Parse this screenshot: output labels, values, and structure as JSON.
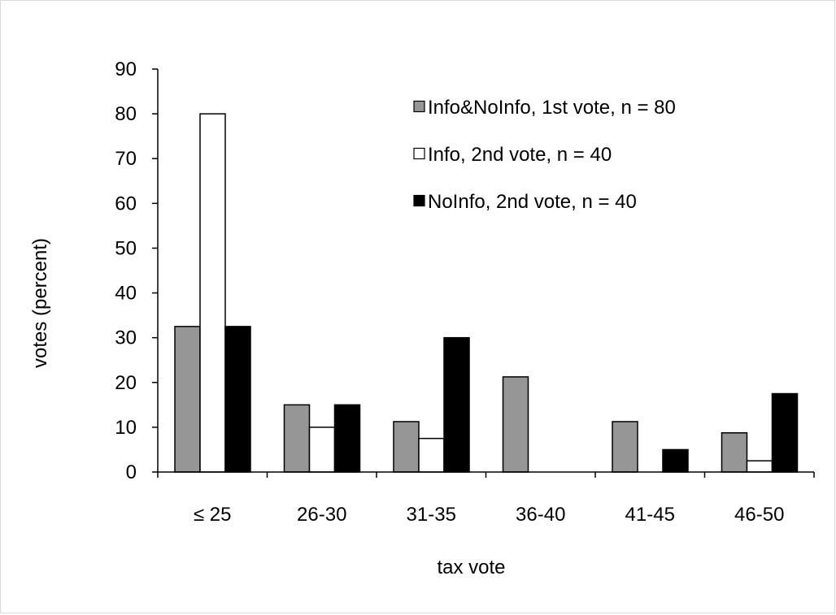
{
  "chart_data": {
    "type": "bar",
    "title": "",
    "xlabel": "tax vote",
    "ylabel": "votes (percent)",
    "ylim": [
      0,
      90
    ],
    "yticks": [
      0,
      10,
      20,
      30,
      40,
      50,
      60,
      70,
      80,
      90
    ],
    "categories": [
      "≤ 25",
      "26-30",
      "31-35",
      "36-40",
      "41-45",
      "46-50"
    ],
    "grid": false,
    "legend_position": "top-right",
    "series": [
      {
        "name": "Info&NoInfo, 1st vote, n = 80",
        "color": "#969696",
        "values": [
          32.5,
          15,
          11.25,
          21.25,
          11.25,
          8.75
        ]
      },
      {
        "name": "Info, 2nd vote, n = 40",
        "color": "#ffffff",
        "values": [
          80,
          10,
          7.5,
          0,
          0,
          2.5
        ]
      },
      {
        "name": "NoInfo, 2nd vote, n = 40",
        "color": "#000000",
        "values": [
          32.5,
          15,
          30,
          0,
          5,
          17.5
        ]
      }
    ]
  }
}
